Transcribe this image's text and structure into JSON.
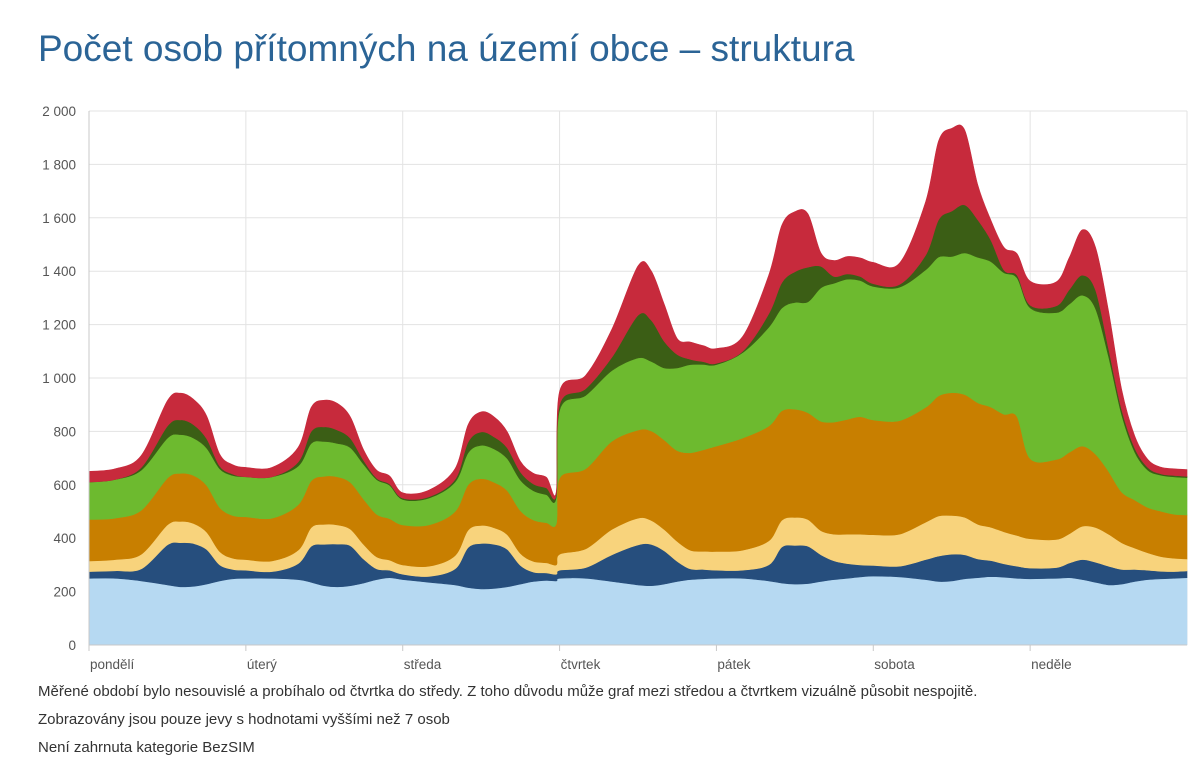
{
  "title": "Počet osob přítomných na území obce – struktura",
  "notes": [
    "Měřené období bylo nesouvislé a probíhalo od čtvrtka do středy. Z toho důvodu může graf mezi středou a čtvrtkem vizuálně působit nespojitě.",
    "Zobrazovány jsou pouze jevy s hodnotami vyššími než 7 osob",
    "Není zahrnuta kategorie BezSIM"
  ],
  "chart_data": {
    "type": "area",
    "stacked": true,
    "title": "Počet osob přítomných na území obce – struktura",
    "xlabel": "",
    "ylabel": "",
    "ylim": [
      0,
      2000
    ],
    "yticks": [
      0,
      200,
      400,
      600,
      800,
      1000,
      1200,
      1400,
      1600,
      1800,
      2000
    ],
    "ytick_labels": [
      "0",
      "200",
      "400",
      "600",
      "800",
      "1 000",
      "1 200",
      "1 400",
      "1 600",
      "1 800",
      "2 000"
    ],
    "grid": true,
    "legend": "none",
    "x_unit": "hours from Monday 00:00",
    "xlim": [
      0,
      168
    ],
    "xticks": [
      0,
      24,
      48,
      72,
      96,
      120,
      144
    ],
    "xtick_labels": [
      "pondělí",
      "úterý",
      "středa",
      "čtvrtek",
      "pátek",
      "sobota",
      "neděle"
    ],
    "x": [
      0,
      4,
      8,
      12,
      14,
      16,
      18,
      20,
      22,
      24,
      28,
      32,
      34,
      36,
      38,
      40,
      42,
      44,
      46,
      48,
      52,
      56,
      58,
      60,
      62,
      64,
      66,
      68,
      70,
      71.5,
      72,
      76,
      80,
      84,
      86,
      88,
      90,
      92,
      94,
      96,
      100,
      104,
      106,
      108,
      110,
      112,
      114,
      116,
      118,
      120,
      124,
      128,
      130,
      132,
      134,
      136,
      138,
      140,
      142,
      144,
      148,
      150,
      152,
      154,
      156,
      158,
      160,
      162,
      164,
      166,
      168
    ],
    "series": [
      {
        "color": "#b6d9f2",
        "values": [
          250,
          250,
          240,
          225,
          218,
          220,
          228,
          240,
          248,
          250,
          250,
          245,
          235,
          222,
          218,
          222,
          232,
          245,
          252,
          245,
          235,
          225,
          215,
          210,
          212,
          218,
          228,
          238,
          242,
          240,
          250,
          250,
          238,
          225,
          222,
          228,
          238,
          245,
          248,
          250,
          250,
          240,
          232,
          228,
          230,
          238,
          245,
          250,
          255,
          258,
          255,
          245,
          238,
          240,
          248,
          252,
          256,
          254,
          250,
          248,
          250,
          252,
          245,
          235,
          225,
          228,
          238,
          245,
          248,
          250,
          252
        ]
      },
      {
        "color": "#264e7d",
        "values": [
          25,
          28,
          45,
          150,
          165,
          160,
          130,
          60,
          35,
          30,
          25,
          60,
          135,
          155,
          160,
          150,
          90,
          40,
          28,
          20,
          22,
          60,
          150,
          170,
          165,
          140,
          70,
          35,
          28,
          25,
          30,
          40,
          100,
          150,
          155,
          125,
          75,
          40,
          35,
          30,
          30,
          60,
          135,
          145,
          140,
          100,
          70,
          55,
          45,
          40,
          40,
          75,
          95,
          100,
          90,
          70,
          60,
          50,
          45,
          40,
          40,
          55,
          75,
          75,
          70,
          55,
          45,
          35,
          28,
          25,
          25
        ]
      },
      {
        "color": "#f8d37c",
        "values": [
          40,
          42,
          55,
          75,
          80,
          75,
          65,
          50,
          42,
          40,
          40,
          50,
          70,
          75,
          72,
          62,
          55,
          45,
          38,
          35,
          38,
          50,
          65,
          68,
          62,
          55,
          45,
          40,
          38,
          35,
          60,
          70,
          95,
          100,
          90,
          80,
          75,
          70,
          68,
          70,
          75,
          90,
          100,
          105,
          100,
          90,
          100,
          110,
          115,
          115,
          120,
          140,
          150,
          145,
          140,
          130,
          125,
          120,
          115,
          110,
          105,
          110,
          125,
          130,
          120,
          100,
          80,
          65,
          55,
          50,
          45
        ]
      },
      {
        "color": "#c87f00",
        "values": [
          155,
          155,
          165,
          175,
          180,
          180,
          175,
          165,
          160,
          160,
          160,
          170,
          175,
          180,
          180,
          175,
          170,
          160,
          155,
          150,
          155,
          165,
          170,
          175,
          170,
          165,
          160,
          155,
          150,
          155,
          285,
          300,
          330,
          330,
          335,
          335,
          340,
          365,
          380,
          395,
          420,
          430,
          410,
          405,
          400,
          410,
          420,
          430,
          440,
          430,
          425,
          430,
          450,
          460,
          460,
          455,
          450,
          440,
          445,
          300,
          300,
          305,
          300,
          275,
          235,
          190,
          180,
          170,
          170,
          165,
          165
        ]
      },
      {
        "color": "#6dba2f",
        "values": [
          140,
          145,
          150,
          150,
          145,
          140,
          140,
          145,
          150,
          150,
          155,
          145,
          140,
          130,
          125,
          130,
          130,
          130,
          125,
          95,
          100,
          110,
          120,
          125,
          125,
          120,
          115,
          110,
          105,
          100,
          255,
          275,
          265,
          270,
          260,
          270,
          310,
          330,
          320,
          305,
          320,
          370,
          385,
          400,
          415,
          500,
          520,
          525,
          510,
          500,
          500,
          515,
          520,
          510,
          530,
          545,
          545,
          530,
          520,
          565,
          550,
          555,
          565,
          545,
          430,
          290,
          180,
          140,
          135,
          140,
          140
        ]
      },
      {
        "color": "#3b5e15",
        "values": [
          0,
          0,
          10,
          45,
          55,
          50,
          35,
          10,
          5,
          0,
          0,
          15,
          45,
          55,
          50,
          35,
          15,
          5,
          5,
          5,
          5,
          10,
          40,
          50,
          45,
          40,
          30,
          25,
          25,
          10,
          20,
          25,
          50,
          160,
          155,
          100,
          50,
          20,
          10,
          5,
          5,
          50,
          95,
          115,
          130,
          80,
          25,
          20,
          15,
          10,
          10,
          55,
          140,
          170,
          180,
          140,
          80,
          10,
          10,
          10,
          25,
          55,
          75,
          70,
          30,
          20,
          15,
          10,
          5,
          5,
          5
        ]
      },
      {
        "color": "#c72a3c",
        "values": [
          40,
          40,
          45,
          95,
          100,
          95,
          85,
          45,
          35,
          35,
          35,
          55,
          90,
          100,
          100,
          80,
          40,
          30,
          30,
          20,
          25,
          40,
          65,
          75,
          75,
          60,
          40,
          40,
          40,
          10,
          50,
          50,
          105,
          185,
          185,
          140,
          60,
          65,
          60,
          55,
          55,
          145,
          215,
          225,
          200,
          50,
          60,
          65,
          70,
          80,
          80,
          200,
          295,
          310,
          280,
          130,
          75,
          85,
          80,
          90,
          90,
          120,
          170,
          160,
          140,
          75,
          45,
          30,
          25,
          25,
          25
        ]
      }
    ]
  }
}
